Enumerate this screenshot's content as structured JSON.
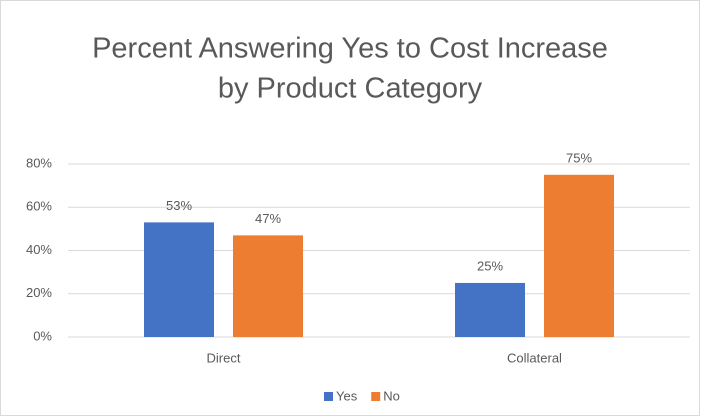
{
  "chart_data": {
    "type": "bar",
    "title": [
      "Percent Answering Yes to Cost Increase",
      "by Product Category"
    ],
    "categories": [
      "Direct",
      "Collateral"
    ],
    "series": [
      {
        "name": "Yes",
        "color": "#4472c4",
        "values": [
          53,
          25
        ],
        "value_labels": [
          "53%",
          "25%"
        ]
      },
      {
        "name": "No",
        "color": "#ed7d31",
        "values": [
          47,
          75
        ],
        "value_labels": [
          "47%",
          "75%"
        ]
      }
    ],
    "ylim": [
      0,
      80
    ],
    "yticks": [
      {
        "value": 0,
        "label": "0%"
      },
      {
        "value": 20,
        "label": "20%"
      },
      {
        "value": 40,
        "label": "40%"
      },
      {
        "value": 60,
        "label": "60%"
      },
      {
        "value": 80,
        "label": "80%"
      }
    ],
    "grid": true,
    "legend": "bottom"
  }
}
